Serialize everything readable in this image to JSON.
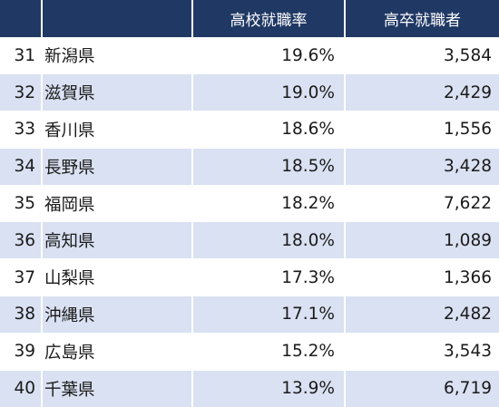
{
  "header": {
    "rank": "",
    "prefecture": "",
    "rate": "高校就職率",
    "employed": "高卒就職者"
  },
  "rows": [
    {
      "rank": "31",
      "prefecture": "新潟県",
      "rate": "19.6%",
      "employed": "3,584"
    },
    {
      "rank": "32",
      "prefecture": "滋賀県",
      "rate": "19.0%",
      "employed": "2,429"
    },
    {
      "rank": "33",
      "prefecture": "香川県",
      "rate": "18.6%",
      "employed": "1,556"
    },
    {
      "rank": "34",
      "prefecture": "長野県",
      "rate": "18.5%",
      "employed": "3,428"
    },
    {
      "rank": "35",
      "prefecture": "福岡県",
      "rate": "18.2%",
      "employed": "7,622"
    },
    {
      "rank": "36",
      "prefecture": "高知県",
      "rate": "18.0%",
      "employed": "1,089"
    },
    {
      "rank": "37",
      "prefecture": "山梨県",
      "rate": "17.3%",
      "employed": "1,366"
    },
    {
      "rank": "38",
      "prefecture": "沖縄県",
      "rate": "17.1%",
      "employed": "2,482"
    },
    {
      "rank": "39",
      "prefecture": "広島県",
      "rate": "15.2%",
      "employed": "3,543"
    },
    {
      "rank": "40",
      "prefecture": "千葉県",
      "rate": "13.9%",
      "employed": "6,719"
    }
  ],
  "colors": {
    "header_bg": "#203864",
    "header_text": "#ffffff",
    "stripe": "#d9e1f2"
  }
}
